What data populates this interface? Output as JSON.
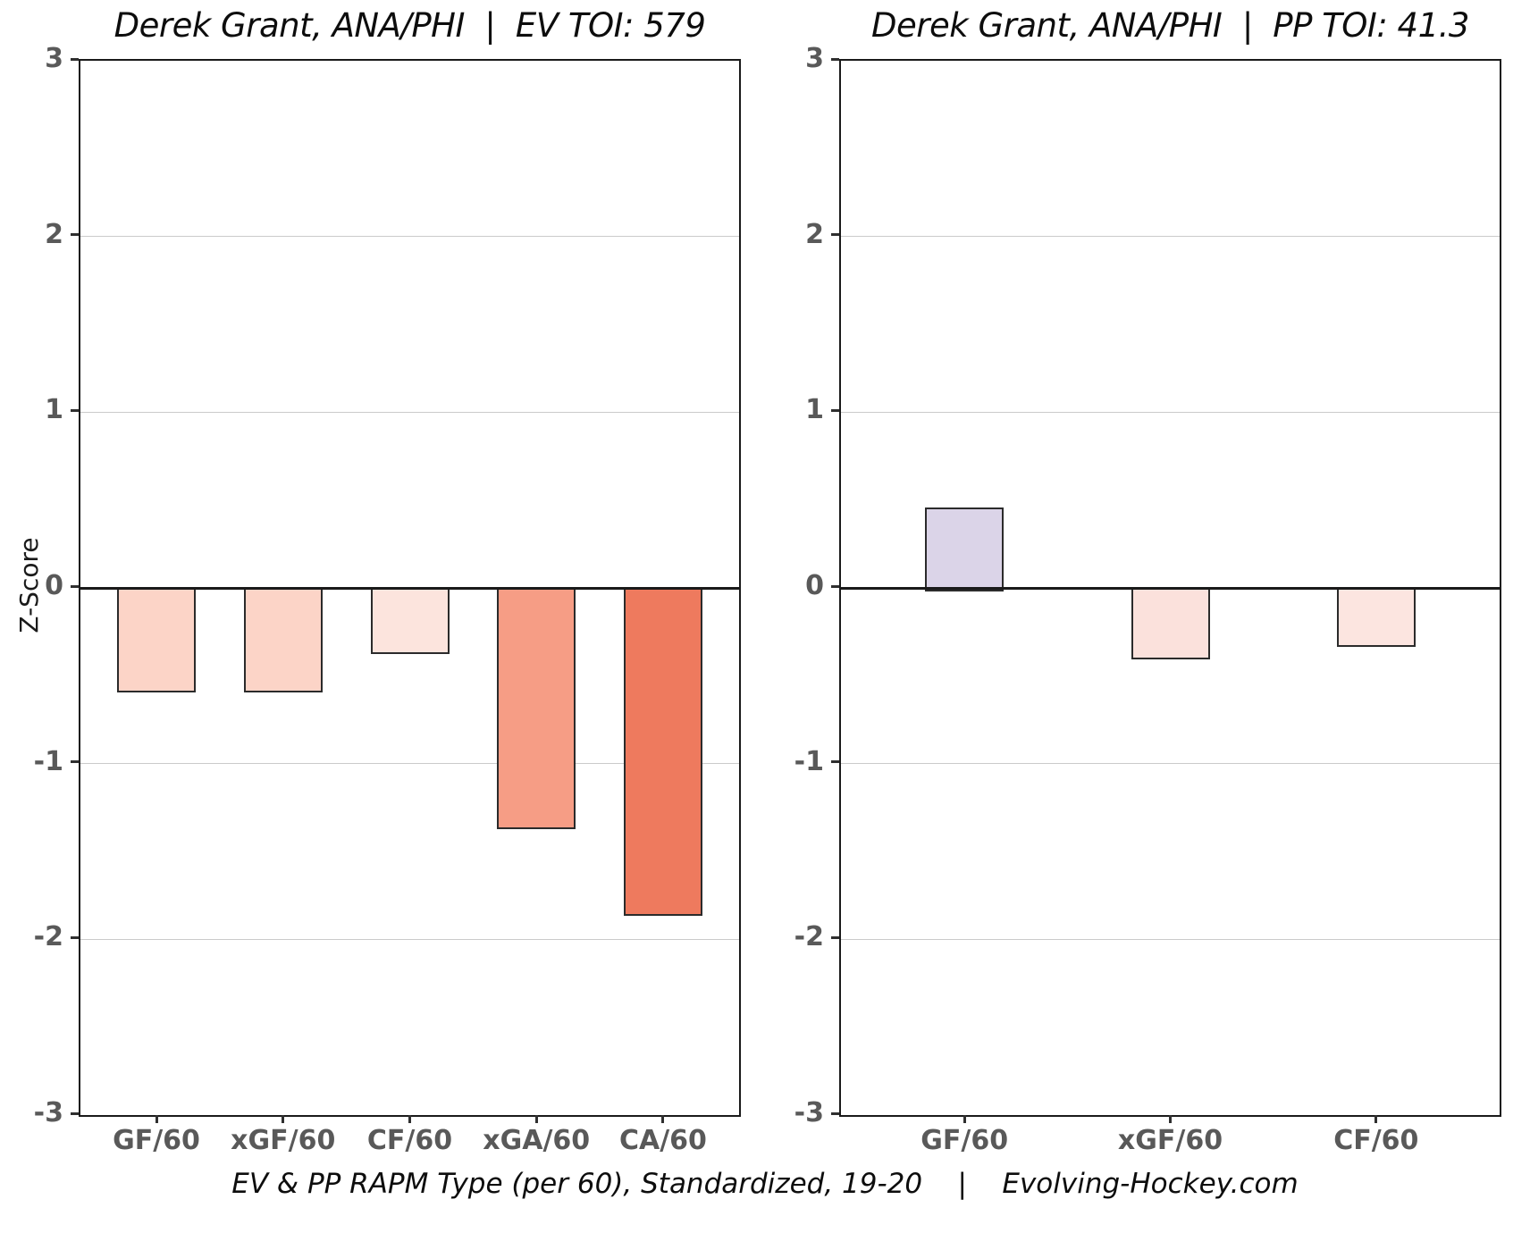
{
  "footer": {
    "text": "EV & PP RAPM Type (per 60), Standardized, 19-20    |    Evolving-Hockey.com"
  },
  "axis": {
    "zscore_label": "Z-Score"
  },
  "chart_data": [
    {
      "type": "bar",
      "title": "Derek Grant, ANA/PHI  |  EV TOI: 579",
      "ylabel": "Z-Score",
      "ylim": [
        -3,
        3
      ],
      "yticks": [
        3,
        2,
        1,
        0,
        -1,
        -2,
        -3
      ],
      "grid": "horizontal-major",
      "categories": [
        "GF/60",
        "xGF/60",
        "CF/60",
        "xGA/60",
        "CA/60"
      ],
      "values": [
        -0.58,
        -0.58,
        -0.36,
        -1.36,
        -1.85
      ],
      "bar_colors": [
        "#fcd4c7",
        "#fcd4c7",
        "#fce4dd",
        "#f69d85",
        "#ee7a5e"
      ],
      "bar_edge_color": "#2b2b2b",
      "zero_line_color": "#1a1a1a"
    },
    {
      "type": "bar",
      "title": "Derek Grant, ANA/PHI  |  PP TOI: 41.3",
      "ylabel": "Z-Score",
      "ylim": [
        -3,
        3
      ],
      "yticks": [
        3,
        2,
        1,
        0,
        -1,
        -2,
        -3
      ],
      "grid": "horizontal-major",
      "categories": [
        "GF/60",
        "xGF/60",
        "CF/60"
      ],
      "values": [
        0.46,
        -0.39,
        -0.32
      ],
      "bar_colors": [
        "#dbd4e8",
        "#fbe1dc",
        "#fce5e0"
      ],
      "bar_edge_color": "#2b2b2b",
      "zero_line_color": "#1a1a1a"
    }
  ]
}
